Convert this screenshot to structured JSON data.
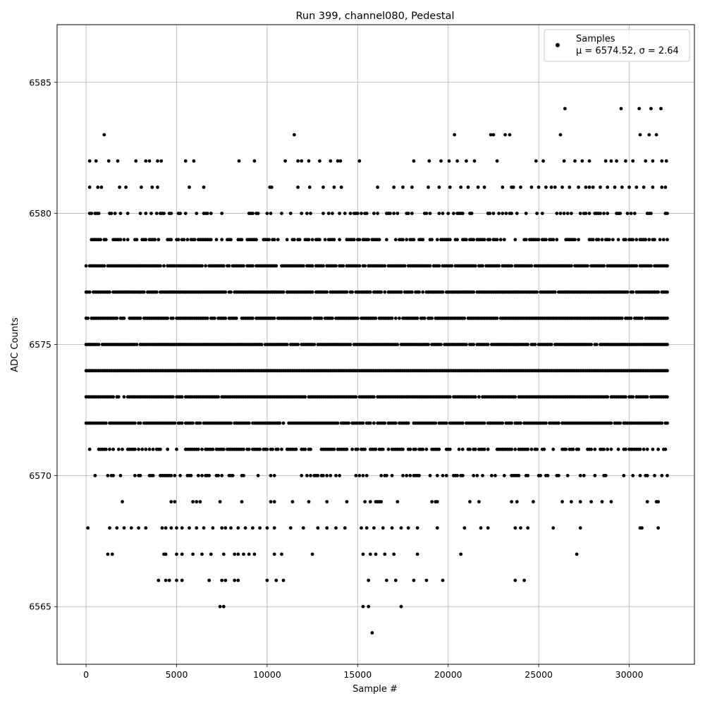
{
  "chart_data": {
    "type": "scatter",
    "title": "Run 399, channel080, Pedestal",
    "xlabel": "Sample #",
    "ylabel": "ADC Counts",
    "xlim": [
      -1600,
      33600
    ],
    "ylim": [
      6562.8,
      6587.2
    ],
    "xticks": [
      0,
      5000,
      10000,
      15000,
      20000,
      25000,
      30000
    ],
    "yticks": [
      6565,
      6570,
      6575,
      6580,
      6585
    ],
    "grid": true,
    "legend_position": "top-right",
    "marker_color": "#000000",
    "n_samples": 32100,
    "series": [
      {
        "name": "Samples",
        "legend_label": "Samples",
        "legend_stats": "μ = 6574.52, σ = 2.64",
        "mean": 6574.52,
        "std": 2.64,
        "level_density": {
          "6569": 0.15,
          "6570": 0.35,
          "6571": 0.6,
          "6572": 0.9,
          "6573": 0.95,
          "6574": 1.0,
          "6575": 0.95,
          "6576": 0.95,
          "6577": 0.95,
          "6578": 0.9,
          "6579": 0.6,
          "6580": 0.35
        },
        "sparse_points": [
          [
            200,
            6582
          ],
          [
            550,
            6582
          ],
          [
            1000,
            6583
          ],
          [
            1250,
            6582
          ],
          [
            1750,
            6582
          ],
          [
            2750,
            6582
          ],
          [
            3300,
            6582
          ],
          [
            3500,
            6582
          ],
          [
            3950,
            6582
          ],
          [
            4150,
            6582
          ],
          [
            5500,
            6582
          ],
          [
            5950,
            6582
          ],
          [
            8450,
            6582
          ],
          [
            9300,
            6582
          ],
          [
            11000,
            6582
          ],
          [
            11500,
            6583
          ],
          [
            11700,
            6582
          ],
          [
            11900,
            6582
          ],
          [
            12300,
            6582
          ],
          [
            12900,
            6582
          ],
          [
            13500,
            6582
          ],
          [
            13900,
            6582
          ],
          [
            14050,
            6582
          ],
          [
            15100,
            6582
          ],
          [
            18100,
            6582
          ],
          [
            18950,
            6582
          ],
          [
            19600,
            6582
          ],
          [
            20050,
            6582
          ],
          [
            20350,
            6583
          ],
          [
            20500,
            6582
          ],
          [
            21000,
            6582
          ],
          [
            21450,
            6582
          ],
          [
            22350,
            6583
          ],
          [
            22500,
            6583
          ],
          [
            22700,
            6582
          ],
          [
            23150,
            6583
          ],
          [
            23400,
            6583
          ],
          [
            24850,
            6582
          ],
          [
            25250,
            6582
          ],
          [
            26200,
            6583
          ],
          [
            26450,
            6584
          ],
          [
            26400,
            6582
          ],
          [
            27000,
            6582
          ],
          [
            27400,
            6582
          ],
          [
            27800,
            6582
          ],
          [
            29550,
            6584
          ],
          [
            30550,
            6584
          ],
          [
            30600,
            6583
          ],
          [
            31100,
            6583
          ],
          [
            31200,
            6584
          ],
          [
            31500,
            6583
          ],
          [
            31750,
            6584
          ],
          [
            31800,
            6582
          ],
          [
            200,
            6581
          ],
          [
            650,
            6581
          ],
          [
            850,
            6581
          ],
          [
            1850,
            6581
          ],
          [
            2200,
            6581
          ],
          [
            3050,
            6581
          ],
          [
            3650,
            6581
          ],
          [
            3950,
            6581
          ],
          [
            5700,
            6581
          ],
          [
            6500,
            6581
          ],
          [
            10150,
            6581
          ],
          [
            10250,
            6581
          ],
          [
            11700,
            6581
          ],
          [
            12350,
            6581
          ],
          [
            13100,
            6581
          ],
          [
            13700,
            6581
          ],
          [
            14100,
            6581
          ],
          [
            16100,
            6581
          ],
          [
            17000,
            6581
          ],
          [
            17500,
            6581
          ],
          [
            18000,
            6581
          ],
          [
            18900,
            6581
          ],
          [
            19500,
            6581
          ],
          [
            20100,
            6581
          ],
          [
            20700,
            6581
          ],
          [
            21100,
            6581
          ],
          [
            21650,
            6581
          ],
          [
            22000,
            6581
          ],
          [
            23000,
            6581
          ],
          [
            23600,
            6581
          ],
          [
            24000,
            6581
          ],
          [
            24600,
            6581
          ],
          [
            25000,
            6581
          ],
          [
            25400,
            6581
          ],
          [
            25900,
            6581
          ],
          [
            26300,
            6581
          ],
          [
            26700,
            6581
          ],
          [
            27200,
            6581
          ],
          [
            27600,
            6581
          ],
          [
            28000,
            6581
          ],
          [
            28400,
            6581
          ],
          [
            28800,
            6581
          ],
          [
            29200,
            6581
          ],
          [
            29600,
            6581
          ],
          [
            30000,
            6581
          ],
          [
            30400,
            6581
          ],
          [
            30800,
            6581
          ],
          [
            31300,
            6581
          ],
          [
            31800,
            6581
          ],
          [
            32000,
            6581
          ],
          [
            28700,
            6582
          ],
          [
            29000,
            6582
          ],
          [
            29300,
            6582
          ],
          [
            29800,
            6582
          ],
          [
            30200,
            6582
          ],
          [
            30900,
            6582
          ],
          [
            31300,
            6582
          ],
          [
            32050,
            6582
          ],
          [
            23500,
            6581
          ],
          [
            25700,
            6581
          ],
          [
            27800,
            6581
          ],
          [
            100,
            6568
          ],
          [
            1300,
            6568
          ],
          [
            1700,
            6568
          ],
          [
            2100,
            6568
          ],
          [
            2500,
            6568
          ],
          [
            2900,
            6568
          ],
          [
            3300,
            6568
          ],
          [
            4200,
            6568
          ],
          [
            4400,
            6568
          ],
          [
            4700,
            6568
          ],
          [
            5000,
            6568
          ],
          [
            5300,
            6568
          ],
          [
            5700,
            6568
          ],
          [
            6100,
            6568
          ],
          [
            6500,
            6568
          ],
          [
            7000,
            6568
          ],
          [
            7500,
            6568
          ],
          [
            7700,
            6568
          ],
          [
            8000,
            6568
          ],
          [
            8400,
            6568
          ],
          [
            8800,
            6568
          ],
          [
            9200,
            6568
          ],
          [
            9600,
            6568
          ],
          [
            10000,
            6568
          ],
          [
            10400,
            6568
          ],
          [
            11300,
            6568
          ],
          [
            12000,
            6568
          ],
          [
            12800,
            6568
          ],
          [
            13300,
            6568
          ],
          [
            13800,
            6568
          ],
          [
            14300,
            6568
          ],
          [
            15200,
            6568
          ],
          [
            15500,
            6568
          ],
          [
            15900,
            6568
          ],
          [
            16400,
            6568
          ],
          [
            16900,
            6568
          ],
          [
            17400,
            6568
          ],
          [
            17800,
            6568
          ],
          [
            18300,
            6568
          ],
          [
            19400,
            6568
          ],
          [
            20900,
            6568
          ],
          [
            21800,
            6568
          ],
          [
            22200,
            6568
          ],
          [
            23700,
            6568
          ],
          [
            24000,
            6568
          ],
          [
            24400,
            6568
          ],
          [
            25800,
            6568
          ],
          [
            27300,
            6568
          ],
          [
            30600,
            6568
          ],
          [
            30700,
            6568
          ],
          [
            31600,
            6568
          ],
          [
            1200,
            6567
          ],
          [
            1450,
            6567
          ],
          [
            4300,
            6567
          ],
          [
            4400,
            6567
          ],
          [
            5000,
            6567
          ],
          [
            5300,
            6567
          ],
          [
            5900,
            6567
          ],
          [
            6400,
            6567
          ],
          [
            6900,
            6567
          ],
          [
            7600,
            6567
          ],
          [
            8200,
            6567
          ],
          [
            8400,
            6567
          ],
          [
            8700,
            6567
          ],
          [
            9000,
            6567
          ],
          [
            9300,
            6567
          ],
          [
            10400,
            6567
          ],
          [
            10800,
            6567
          ],
          [
            12500,
            6567
          ],
          [
            15300,
            6567
          ],
          [
            15700,
            6567
          ],
          [
            16000,
            6567
          ],
          [
            16500,
            6567
          ],
          [
            17000,
            6567
          ],
          [
            18300,
            6567
          ],
          [
            20700,
            6567
          ],
          [
            27100,
            6567
          ],
          [
            4000,
            6566
          ],
          [
            4400,
            6566
          ],
          [
            4600,
            6566
          ],
          [
            5000,
            6566
          ],
          [
            5300,
            6566
          ],
          [
            6800,
            6566
          ],
          [
            7500,
            6566
          ],
          [
            7700,
            6566
          ],
          [
            8200,
            6566
          ],
          [
            8400,
            6566
          ],
          [
            10000,
            6566
          ],
          [
            10500,
            6566
          ],
          [
            10900,
            6566
          ],
          [
            15600,
            6566
          ],
          [
            16600,
            6566
          ],
          [
            17100,
            6566
          ],
          [
            18100,
            6566
          ],
          [
            18800,
            6566
          ],
          [
            19700,
            6566
          ],
          [
            23700,
            6566
          ],
          [
            24200,
            6566
          ],
          [
            7400,
            6565
          ],
          [
            7600,
            6565
          ],
          [
            15300,
            6565
          ],
          [
            15600,
            6565
          ],
          [
            17400,
            6565
          ],
          [
            15800,
            6564
          ]
        ]
      }
    ]
  }
}
